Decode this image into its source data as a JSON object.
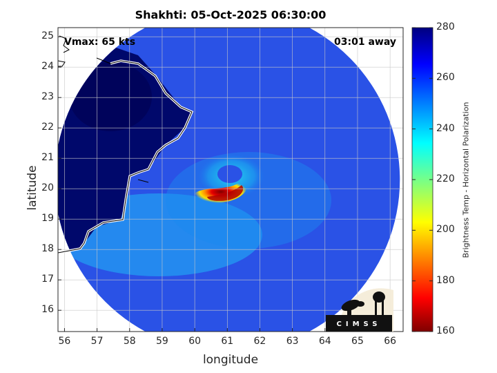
{
  "title": "Shakhti: 05-Oct-2025 06:30:00",
  "vmax_label": "Vmax: 65 kts",
  "away_label": "03:01 away",
  "xaxis": {
    "label": "longitude",
    "range": [
      55.8,
      66.4
    ],
    "ticks": [
      "56",
      "57",
      "58",
      "59",
      "60",
      "61",
      "62",
      "63",
      "64",
      "65",
      "66"
    ]
  },
  "yaxis": {
    "label": "latitude",
    "range": [
      15.3,
      25.3
    ],
    "ticks": [
      "16",
      "17",
      "18",
      "19",
      "20",
      "21",
      "22",
      "23",
      "24",
      "25"
    ]
  },
  "colorbar": {
    "title": "Brightness Temp - Horizontal Polarization",
    "range": [
      160,
      280
    ],
    "ticks": [
      "160",
      "180",
      "200",
      "220",
      "240",
      "260",
      "280"
    ],
    "colormap": "jet"
  },
  "storm": {
    "name": "Shakhti",
    "center": [
      61.0,
      20.1
    ]
  },
  "swath": {
    "center": [
      61.0,
      20.3
    ],
    "radius_deg": 5.3
  },
  "logo_text": "CIMSS",
  "colors": {
    "land": "#00086b",
    "ocean": "#2a52e6",
    "coast": "#ffffff"
  },
  "grid": true
}
